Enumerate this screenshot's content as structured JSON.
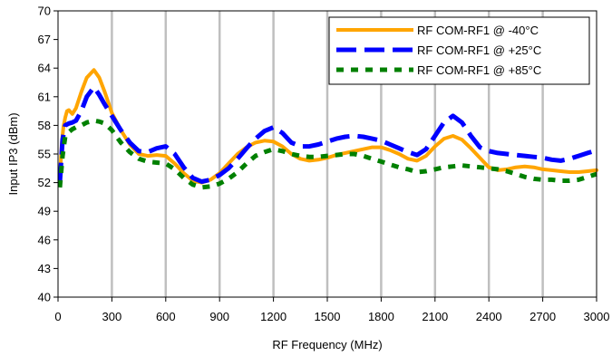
{
  "chart_data": {
    "type": "line",
    "title": "",
    "xlabel": "RF Frequency (MHz)",
    "ylabel": "Input IP3 (dBm)",
    "xlim": [
      0,
      3000
    ],
    "ylim": [
      40,
      70
    ],
    "xticks": [
      0,
      300,
      600,
      900,
      1200,
      1500,
      1800,
      2100,
      2400,
      2700,
      3000
    ],
    "yticks": [
      40,
      43,
      46,
      49,
      52,
      55,
      58,
      61,
      64,
      67,
      70
    ],
    "grid": "vertical",
    "legend_position": "top-right",
    "series": [
      {
        "name": "RF COM-RF1 @ -40°C",
        "color": "#FFA500",
        "style": "solid",
        "x": [
          10,
          20,
          30,
          40,
          50,
          60,
          80,
          100,
          130,
          160,
          200,
          230,
          260,
          300,
          350,
          400,
          450,
          500,
          550,
          600,
          650,
          700,
          750,
          800,
          850,
          900,
          950,
          1000,
          1050,
          1100,
          1150,
          1200,
          1250,
          1300,
          1350,
          1400,
          1450,
          1500,
          1550,
          1600,
          1650,
          1700,
          1750,
          1800,
          1850,
          1900,
          1950,
          2000,
          2050,
          2100,
          2150,
          2200,
          2250,
          2300,
          2350,
          2400,
          2450,
          2500,
          2550,
          2600,
          2650,
          2700,
          2750,
          2800,
          2850,
          2900,
          2950,
          3000
        ],
        "y": [
          52.2,
          56.0,
          57.8,
          58.8,
          59.5,
          59.6,
          59.2,
          59.8,
          61.5,
          63.0,
          63.8,
          63.0,
          61.5,
          59.3,
          57.5,
          56.0,
          55.0,
          54.8,
          54.9,
          54.8,
          54.0,
          53.0,
          52.2,
          52.0,
          52.3,
          53.0,
          54.0,
          55.0,
          55.7,
          56.2,
          56.4,
          56.3,
          55.8,
          55.0,
          54.5,
          54.3,
          54.4,
          54.6,
          54.9,
          55.1,
          55.3,
          55.5,
          55.7,
          55.7,
          55.4,
          55.0,
          54.5,
          54.3,
          54.8,
          55.8,
          56.6,
          56.9,
          56.5,
          55.6,
          54.6,
          53.6,
          53.3,
          53.4,
          53.6,
          53.7,
          53.6,
          53.4,
          53.3,
          53.2,
          53.1,
          53.1,
          53.2,
          53.3
        ]
      },
      {
        "name": "RF COM-RF1 @ +25°C",
        "color": "#0000FF",
        "style": "dash",
        "x": [
          10,
          25,
          40,
          60,
          80,
          100,
          130,
          160,
          200,
          230,
          260,
          300,
          350,
          400,
          450,
          500,
          550,
          600,
          650,
          700,
          750,
          800,
          850,
          900,
          950,
          1000,
          1050,
          1100,
          1150,
          1200,
          1250,
          1300,
          1350,
          1400,
          1450,
          1500,
          1550,
          1600,
          1650,
          1700,
          1750,
          1800,
          1850,
          1900,
          1950,
          2000,
          2050,
          2100,
          2150,
          2200,
          2250,
          2300,
          2350,
          2400,
          2450,
          2500,
          2550,
          2600,
          2650,
          2700,
          2750,
          2800,
          2850,
          2900,
          2950,
          3000
        ],
        "y": [
          52.0,
          56.5,
          58.0,
          58.2,
          58.3,
          58.5,
          59.5,
          61.0,
          62.0,
          61.2,
          60.2,
          59.0,
          57.5,
          56.2,
          55.3,
          55.2,
          55.6,
          55.8,
          55.0,
          53.6,
          52.5,
          52.1,
          52.3,
          52.8,
          53.5,
          54.5,
          55.6,
          56.6,
          57.4,
          57.8,
          57.2,
          56.2,
          55.8,
          55.8,
          56.0,
          56.3,
          56.6,
          56.8,
          56.9,
          56.8,
          56.6,
          56.4,
          56.0,
          55.6,
          55.2,
          54.9,
          55.5,
          56.9,
          58.3,
          59.0,
          58.3,
          56.9,
          55.7,
          55.3,
          55.1,
          55.0,
          54.9,
          54.8,
          54.7,
          54.6,
          54.4,
          54.3,
          54.5,
          54.8,
          55.1,
          55.4
        ]
      },
      {
        "name": "RF COM-RF1 @ +85°C",
        "color": "#008000",
        "style": "dot",
        "x": [
          10,
          25,
          40,
          60,
          80,
          100,
          130,
          160,
          200,
          230,
          260,
          300,
          350,
          400,
          450,
          500,
          550,
          600,
          650,
          700,
          750,
          800,
          850,
          900,
          950,
          1000,
          1050,
          1100,
          1150,
          1200,
          1250,
          1300,
          1350,
          1400,
          1450,
          1500,
          1550,
          1600,
          1650,
          1700,
          1750,
          1800,
          1850,
          1900,
          1950,
          2000,
          2050,
          2100,
          2150,
          2200,
          2250,
          2300,
          2350,
          2400,
          2450,
          2500,
          2550,
          2600,
          2650,
          2700,
          2750,
          2800,
          2850,
          2900,
          2950,
          3000
        ],
        "y": [
          51.5,
          54.8,
          56.8,
          57.3,
          57.6,
          57.8,
          58.0,
          58.3,
          58.5,
          58.4,
          58.2,
          57.5,
          56.2,
          55.2,
          54.5,
          54.2,
          54.1,
          54.0,
          53.4,
          52.5,
          51.8,
          51.5,
          51.6,
          51.9,
          52.4,
          53.1,
          54.0,
          54.8,
          55.2,
          55.5,
          55.3,
          55.0,
          54.8,
          54.7,
          54.7,
          54.8,
          54.9,
          55.0,
          55.0,
          54.8,
          54.5,
          54.2,
          53.9,
          53.6,
          53.4,
          53.1,
          53.2,
          53.4,
          53.6,
          53.7,
          53.8,
          53.7,
          53.6,
          53.5,
          53.4,
          53.2,
          52.9,
          52.6,
          52.4,
          52.3,
          52.3,
          52.2,
          52.2,
          52.3,
          52.6,
          52.9
        ]
      }
    ]
  }
}
